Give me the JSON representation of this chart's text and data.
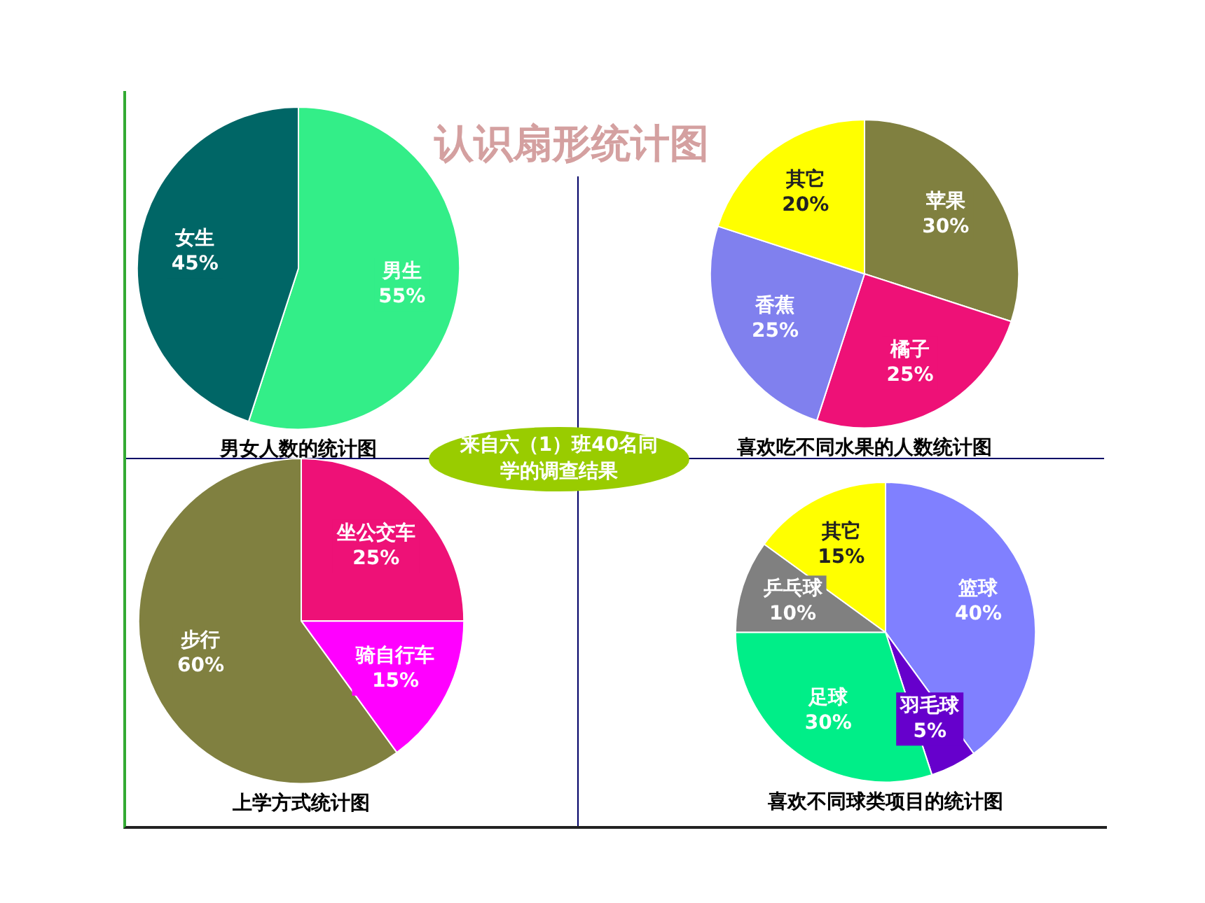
{
  "chart_data": [
    {
      "type": "pie",
      "title": "男女人数的统计图",
      "annotations": [
        "认识扇形统计图",
        "来自六（1）班40名同学的调查结果"
      ],
      "categories": [
        "男生",
        "女生"
      ],
      "values": [
        55,
        45
      ],
      "colors": [
        "#33ee88",
        "#006666"
      ],
      "value_labels": [
        "55%",
        "45%"
      ]
    },
    {
      "type": "pie",
      "title": "喜欢吃不同水果的人数统计图",
      "categories": [
        "苹果",
        "橘子",
        "香蕉",
        "其它"
      ],
      "values": [
        30,
        25,
        25,
        20
      ],
      "colors": [
        "#808040",
        "#ee1177",
        "#8080ee",
        "#ffff00"
      ],
      "value_labels": [
        "30%",
        "25%",
        "25%",
        "20%"
      ]
    },
    {
      "type": "pie",
      "title": "上学方式统计图",
      "categories": [
        "坐公交车",
        "骑自行车",
        "步行"
      ],
      "values": [
        25,
        15,
        60
      ],
      "colors": [
        "#ee1177",
        "#ff00ff",
        "#808040"
      ],
      "value_labels": [
        "25%",
        "15%",
        "60%"
      ]
    },
    {
      "type": "pie",
      "title": "喜欢不同球类项目的统计图",
      "categories": [
        "篮球",
        "羽毛球",
        "足球",
        "乒乓球",
        "其它"
      ],
      "values": [
        40,
        5,
        30,
        10,
        15
      ],
      "colors": [
        "#8080ff",
        "#6600cc",
        "#00ee88",
        "#808080",
        "#ffff00"
      ],
      "value_labels": [
        "40%",
        "5%",
        "30%",
        "10%",
        "15%"
      ]
    }
  ]
}
